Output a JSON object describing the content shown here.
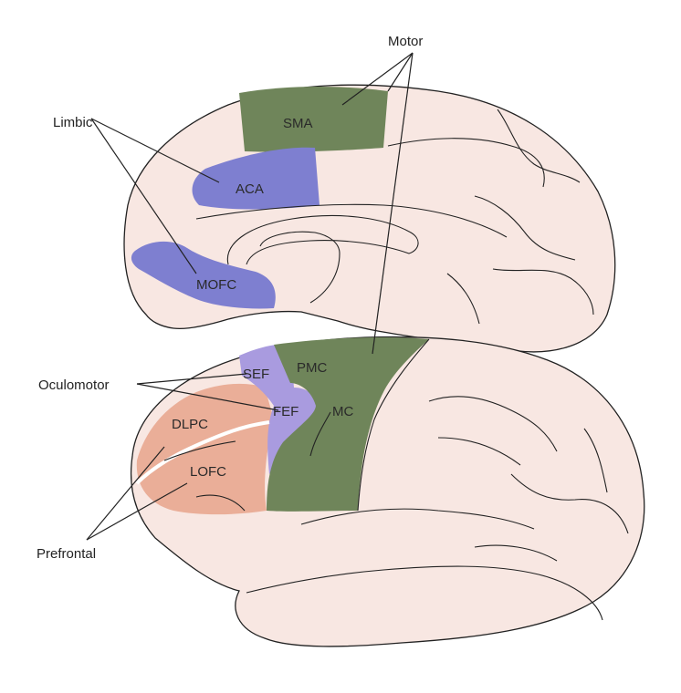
{
  "groups": {
    "motor": "Motor",
    "limbic": "Limbic",
    "oculomotor": "Oculomotor",
    "prefrontal": "Prefrontal"
  },
  "regions": {
    "sma": "SMA",
    "aca": "ACA",
    "mofc": "MOFC",
    "sef": "SEF",
    "fef": "FEF",
    "pmc": "PMC",
    "mc": "MC",
    "dlpc": "DLPC",
    "lofc": "LOFC"
  },
  "colors": {
    "brain": "#f8e7e2",
    "motor": "#6f855a",
    "limbic": "#7e7fd0",
    "oculomotor": "#a99bdf",
    "prefrontal": "#eaae98"
  }
}
